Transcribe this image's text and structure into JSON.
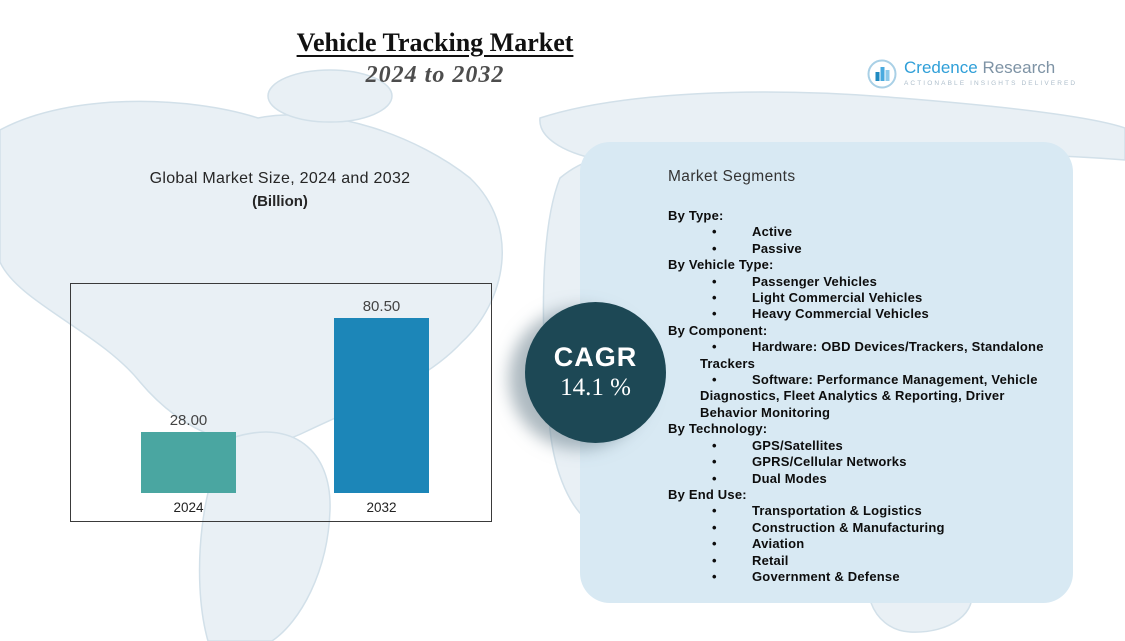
{
  "header": {
    "title": "Vehicle Tracking Market",
    "subtitle": "2024 to 2032"
  },
  "logo": {
    "brand_first": "Credence",
    "brand_second": "Research",
    "tagline": "Actionable Insights Delivered"
  },
  "chart": {
    "title": "Global Market Size, 2024 and 2032",
    "subtitle": "(Billion)"
  },
  "chart_data": {
    "type": "bar",
    "title": "Global Market Size, 2024 and 2032 (Billion)",
    "categories": [
      "2024",
      "2032"
    ],
    "values": [
      28.0,
      80.5
    ],
    "value_labels": [
      "28.00",
      "80.50"
    ],
    "bar_colors": [
      "#4aa6a1",
      "#1c86b8"
    ],
    "ylim": [
      0,
      100
    ],
    "grid": false,
    "legend": false
  },
  "cagr": {
    "label": "CAGR",
    "value": "14.1 %",
    "badge_color": "#1d4855"
  },
  "segments": {
    "title": "Market Segments",
    "panel_color": "#d8e9f3",
    "groups": [
      {
        "heading": "By Type:",
        "items": [
          "Active",
          "Passive"
        ]
      },
      {
        "heading": "By Vehicle Type:",
        "items": [
          "Passenger Vehicles",
          "Light Commercial Vehicles",
          "Heavy Commercial Vehicles"
        ]
      },
      {
        "heading": "By Component:",
        "items": [
          "Hardware: OBD Devices/Trackers, Standalone Trackers",
          "Software: Performance Management, Vehicle Diagnostics, Fleet Analytics & Reporting, Driver Behavior Monitoring"
        ]
      },
      {
        "heading": "By Technology:",
        "items": [
          "GPS/Satellites",
          "GPRS/Cellular Networks",
          "Dual Modes"
        ]
      },
      {
        "heading": "By End Use:",
        "items": [
          "Transportation & Logistics",
          "Construction & Manufacturing",
          "Aviation",
          "Retail",
          "Government & Defense"
        ]
      }
    ]
  }
}
